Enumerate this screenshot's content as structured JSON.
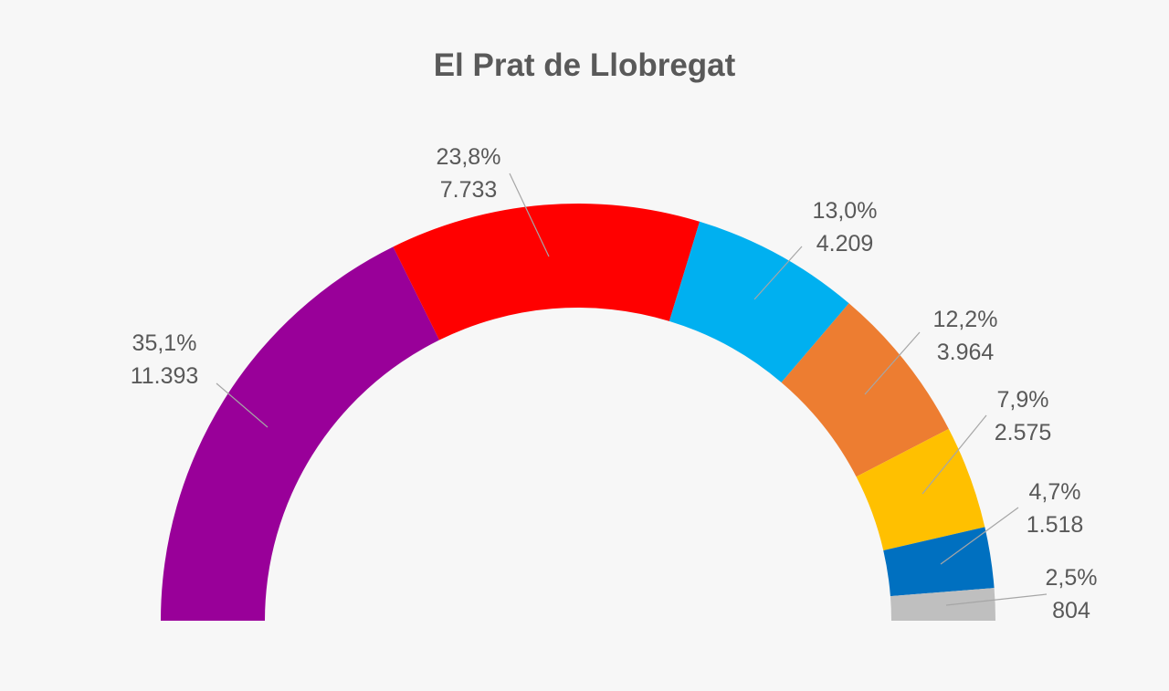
{
  "chart_data": {
    "type": "pie",
    "subtype": "half-donut",
    "title": "El Prat de Llobregat",
    "segments": [
      {
        "percent_label": "35,1%",
        "votes_label": "11.393",
        "percent": 35.1,
        "votes": 11393,
        "color": "#990099"
      },
      {
        "percent_label": "23,8%",
        "votes_label": "7.733",
        "percent": 23.8,
        "votes": 7733,
        "color": "#ff0000"
      },
      {
        "percent_label": "13,0%",
        "votes_label": "4.209",
        "percent": 13.0,
        "votes": 4209,
        "color": "#00b0f0"
      },
      {
        "percent_label": "12,2%",
        "votes_label": "3.964",
        "percent": 12.2,
        "votes": 3964,
        "color": "#ed7d31"
      },
      {
        "percent_label": "7,9%",
        "votes_label": "2.575",
        "percent": 7.9,
        "votes": 2575,
        "color": "#ffc000"
      },
      {
        "percent_label": "4,7%",
        "votes_label": "1.518",
        "percent": 4.7,
        "votes": 1518,
        "color": "#0070c0"
      },
      {
        "percent_label": "2,5%",
        "votes_label": "804",
        "percent": 2.5,
        "votes": 804,
        "color": "#bfbfbf"
      }
    ],
    "legend": "none",
    "grid": false
  }
}
